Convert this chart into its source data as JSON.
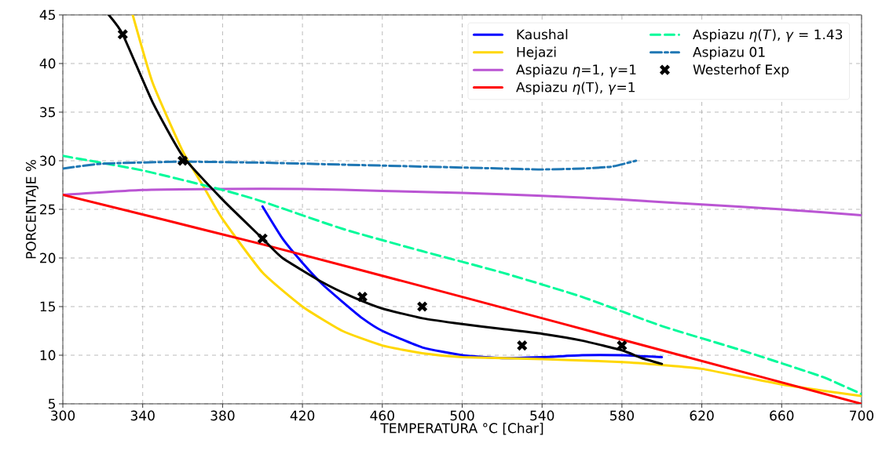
{
  "chart_data": {
    "type": "line",
    "xlabel": "TEMPERATURA °C [Char]",
    "ylabel": "PORCENTAJE %",
    "xlim": [
      300,
      700
    ],
    "ylim": [
      5,
      45
    ],
    "xticks": [
      300,
      340,
      380,
      420,
      460,
      500,
      540,
      580,
      620,
      660,
      700
    ],
    "yticks": [
      5,
      10,
      15,
      20,
      25,
      30,
      35,
      40,
      45
    ],
    "grid": true,
    "legend": "top right",
    "series": [
      {
        "name": "Kaushal",
        "color": "#0000ff",
        "line_style": "solid",
        "x": [
          400,
          410,
          420,
          430,
          440,
          450,
          460,
          480,
          500,
          520,
          540,
          560,
          580,
          590,
          600
        ],
        "values": [
          25.3,
          22,
          19.5,
          17.3,
          15.5,
          13.8,
          12.5,
          10.8,
          10,
          9.7,
          9.8,
          10,
          10,
          9.9,
          9.8
        ]
      },
      {
        "name": "Hejazi",
        "color": "#ffd700",
        "line_style": "solid",
        "x": [
          335,
          345,
          360,
          370,
          380,
          400,
          420,
          440,
          460,
          480,
          500,
          540,
          580,
          600,
          620,
          660,
          700
        ],
        "values": [
          45,
          38,
          31,
          27.5,
          24,
          18.5,
          15,
          12.5,
          11,
          10.2,
          9.8,
          9.6,
          9.3,
          9,
          8.6,
          7,
          5.8
        ]
      },
      {
        "name": "Aspiazu *η*=1, *γ*=1",
        "color": "#ba55d3",
        "line_style": "solid",
        "x": [
          300,
          340,
          380,
          420,
          460,
          500,
          540,
          580,
          620,
          660,
          700
        ],
        "values": [
          26.5,
          27,
          27.1,
          27.1,
          26.9,
          26.7,
          26.4,
          26,
          25.5,
          25,
          24.4
        ]
      },
      {
        "name": "Aspiazu *η*(T), *γ*=1",
        "color": "#ff0000",
        "line_style": "solid",
        "x": [
          300,
          400,
          500,
          600,
          700
        ],
        "values": [
          26.5,
          21.4,
          16,
          10.5,
          5
        ]
      },
      {
        "name": "Aspiazu *η*(*T*), *γ* = 1.43",
        "color": "#00fa9a",
        "line_style": "dashed",
        "x": [
          300,
          340,
          380,
          400,
          440,
          480,
          520,
          560,
          600,
          640,
          680,
          700
        ],
        "values": [
          30.5,
          29,
          27,
          25.8,
          23,
          20.7,
          18.5,
          16,
          13,
          10.5,
          7.8,
          6
        ]
      },
      {
        "name": "Aspiazu 01",
        "color": "#1f77b4",
        "line_style": "dashdot",
        "x": [
          300,
          320,
          360,
          400,
          440,
          480,
          520,
          540,
          560,
          575,
          587
        ],
        "values": [
          29.2,
          29.7,
          29.9,
          29.8,
          29.6,
          29.4,
          29.2,
          29.1,
          29.2,
          29.4,
          30
        ]
      },
      {
        "name": "Westerhof Exp",
        "type": "scatter",
        "color": "#000000",
        "marker": "cross",
        "x": [
          330,
          360,
          400,
          450,
          480,
          530,
          580
        ],
        "values": [
          43,
          30,
          22,
          16,
          15,
          11,
          11
        ]
      },
      {
        "color": "#000000",
        "line_style": "solid",
        "x": [
          323,
          330,
          345,
          360,
          380,
          400,
          410,
          430,
          445,
          460,
          480,
          500,
          520,
          540,
          560,
          580,
          590,
          600
        ],
        "values": [
          45,
          43,
          36,
          30.5,
          26,
          22,
          20,
          17.5,
          16,
          14.8,
          13.8,
          13.2,
          12.7,
          12.2,
          11.5,
          10.5,
          9.7,
          9.1
        ]
      }
    ]
  }
}
